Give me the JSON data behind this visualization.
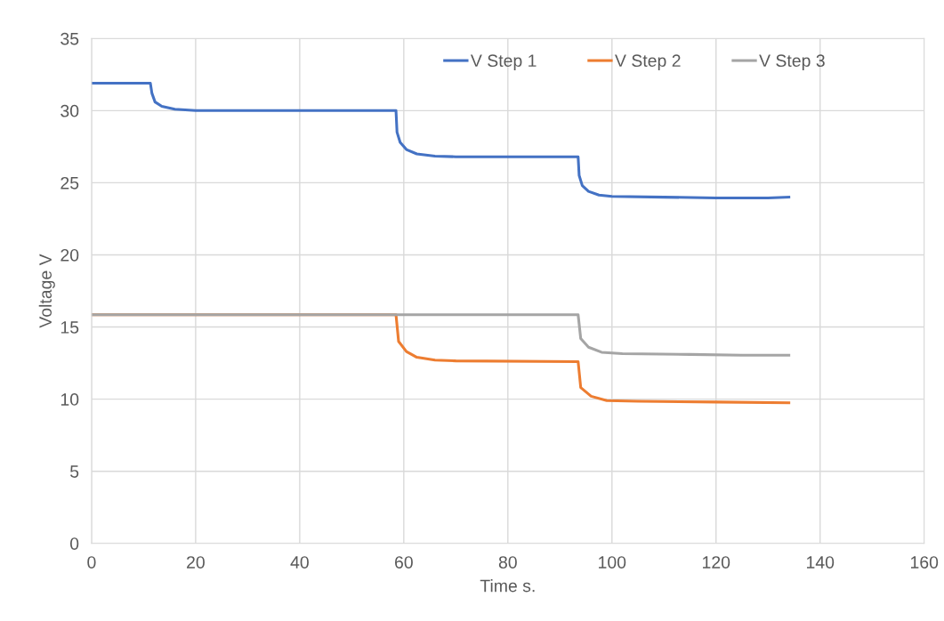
{
  "chart_data": {
    "type": "line",
    "xlabel": "Time s.",
    "ylabel": "Voltage V",
    "xlim": [
      0,
      160
    ],
    "xticks": [
      0,
      20,
      40,
      60,
      80,
      100,
      120,
      140,
      160
    ],
    "ylim": [
      0,
      35
    ],
    "yticks": [
      0,
      5,
      10,
      15,
      20,
      25,
      30,
      35
    ],
    "grid": true,
    "legend": "top right",
    "marker": "none",
    "line_style": "solid",
    "series": [
      {
        "name": "V Step 1",
        "color": "#4472c4",
        "x": [
          0,
          11.3,
          11.6,
          12.2,
          13.5,
          16,
          20,
          58.5,
          58.7,
          59.3,
          60.5,
          62.5,
          66,
          70,
          93.5,
          93.7,
          94.3,
          95.5,
          97.5,
          100,
          110,
          120,
          130,
          134
        ],
        "values": [
          31.9,
          31.9,
          31.2,
          30.6,
          30.3,
          30.1,
          30.0,
          30.0,
          28.5,
          27.8,
          27.3,
          27.0,
          26.85,
          26.8,
          26.8,
          25.5,
          24.8,
          24.4,
          24.15,
          24.05,
          24.0,
          23.95,
          23.95,
          24.0
        ]
      },
      {
        "name": "V Step 2",
        "color": "#ed7d31",
        "x": [
          0,
          58.5,
          59,
          60.5,
          62.5,
          66,
          70,
          93.5,
          94,
          96,
          99,
          105,
          120,
          134
        ],
        "values": [
          15.85,
          15.85,
          14.0,
          13.3,
          12.9,
          12.7,
          12.65,
          12.6,
          10.8,
          10.2,
          9.9,
          9.85,
          9.8,
          9.75
        ]
      },
      {
        "name": "V Step 3",
        "color": "#a5a5a5",
        "x": [
          0,
          93.5,
          94,
          95.5,
          98,
          102,
          115,
          125,
          134
        ],
        "values": [
          15.85,
          15.85,
          14.2,
          13.6,
          13.25,
          13.15,
          13.1,
          13.05,
          13.05
        ]
      }
    ]
  }
}
